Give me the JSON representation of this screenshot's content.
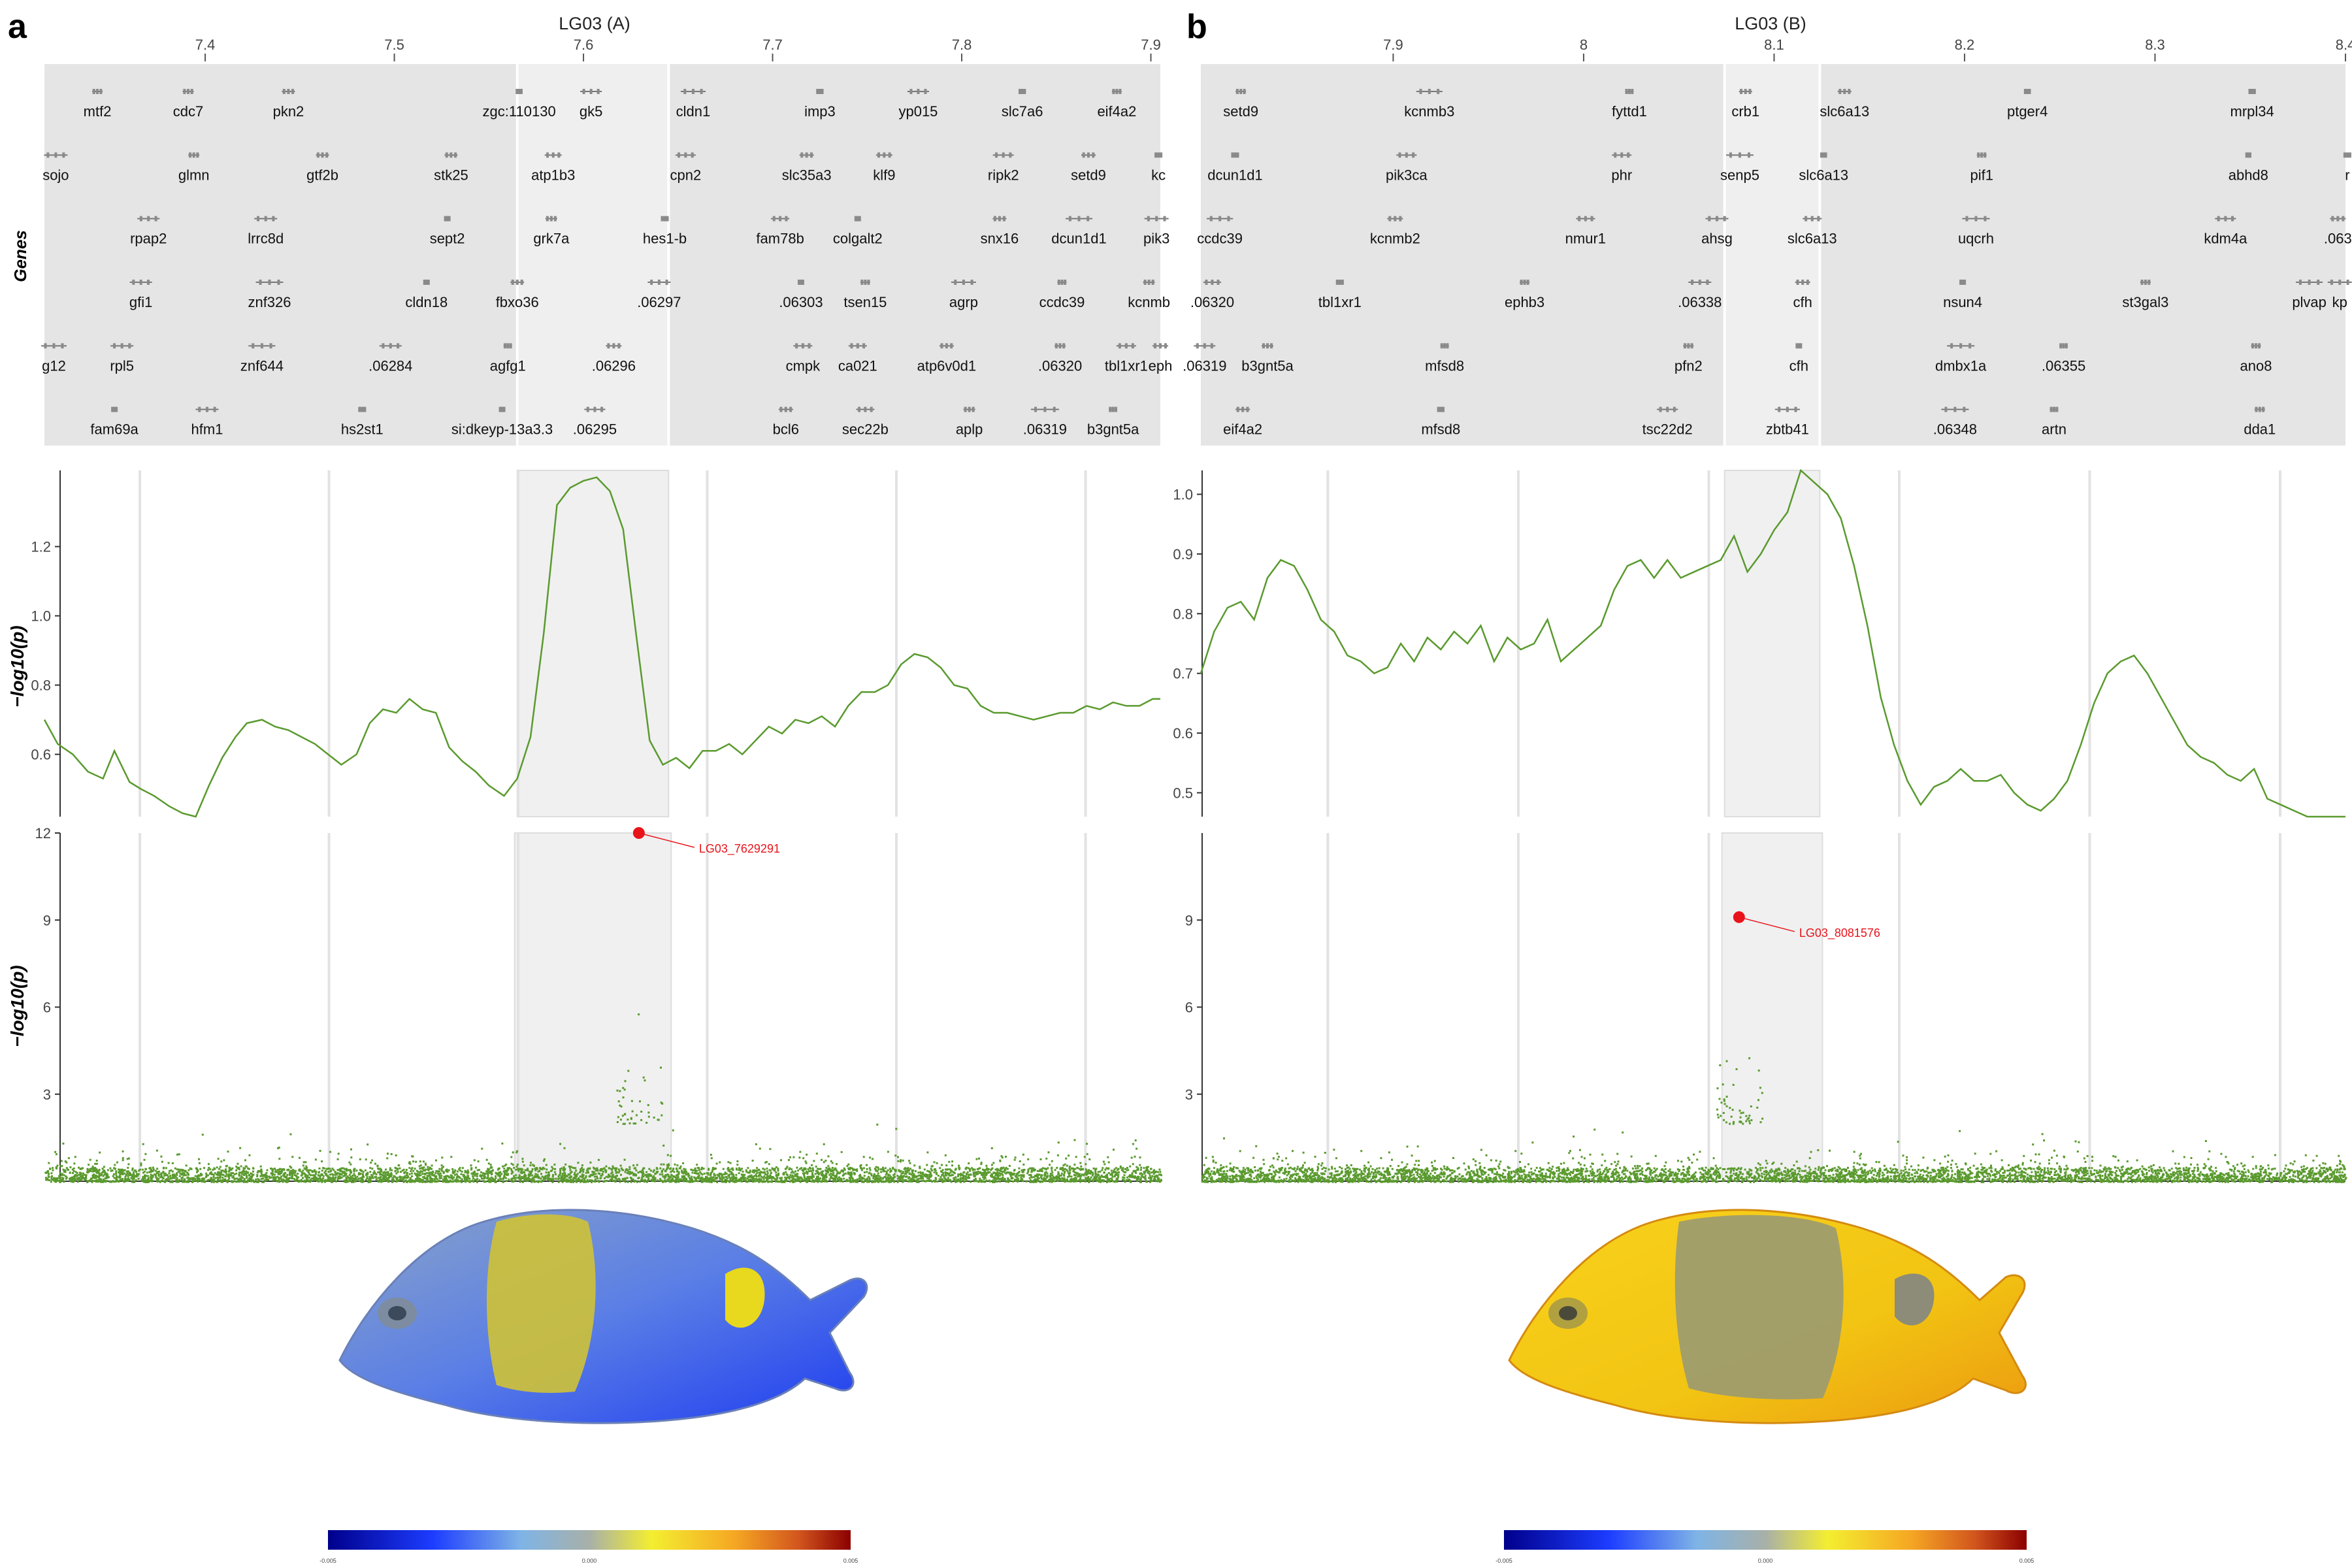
{
  "figure": {
    "panel_a_label": "a",
    "panel_b_label": "b"
  },
  "colors": {
    "track": "#5a9a2e",
    "highlight": "#e8141a",
    "gene_bg": "#e5e5e5",
    "region_bg": "#f0f0f0"
  },
  "chart_data": [
    {
      "panel": "a",
      "type": "scatter",
      "title": "LG03 (A)",
      "x_ticks": [
        "7.4",
        "7.5",
        "7.6",
        "7.7",
        "7.8",
        "7.9"
      ],
      "x_tick_values": [
        7.4,
        7.5,
        7.6,
        7.7,
        7.8,
        7.9
      ],
      "xlim": [
        7.315,
        7.905
      ],
      "highlight_region": [
        7.565,
        7.645
      ],
      "genes_track": {
        "ylabel": "Genes",
        "genes": [
          {
            "name": "mtf2",
            "x": 7.343,
            "row": 0
          },
          {
            "name": "cdc7",
            "x": 7.391,
            "row": 0
          },
          {
            "name": "pkn2",
            "x": 7.444,
            "row": 0
          },
          {
            "name": "zgc:110130",
            "x": 7.566,
            "row": 0
          },
          {
            "name": "gk5",
            "x": 7.604,
            "row": 0
          },
          {
            "name": "cldn1",
            "x": 7.658,
            "row": 0
          },
          {
            "name": "imp3",
            "x": 7.725,
            "row": 0
          },
          {
            "name": "yp015",
            "x": 7.777,
            "row": 0
          },
          {
            "name": "slc7a6",
            "x": 7.832,
            "row": 0
          },
          {
            "name": "eif4a2",
            "x": 7.882,
            "row": 0
          },
          {
            "name": "sojo",
            "x": 7.321,
            "row": 1
          },
          {
            "name": "glmn",
            "x": 7.394,
            "row": 1
          },
          {
            "name": "gtf2b",
            "x": 7.462,
            "row": 1
          },
          {
            "name": "stk25",
            "x": 7.53,
            "row": 1
          },
          {
            "name": "atp1b3",
            "x": 7.584,
            "row": 1
          },
          {
            "name": "cpn2",
            "x": 7.654,
            "row": 1
          },
          {
            "name": "slc35a3",
            "x": 7.718,
            "row": 1
          },
          {
            "name": "klf9",
            "x": 7.759,
            "row": 1
          },
          {
            "name": "ripk2",
            "x": 7.822,
            "row": 1
          },
          {
            "name": "setd9",
            "x": 7.867,
            "row": 1
          },
          {
            "name": "kc",
            "x": 7.904,
            "row": 1
          },
          {
            "name": "rpap2",
            "x": 7.37,
            "row": 2
          },
          {
            "name": "lrrc8d",
            "x": 7.432,
            "row": 2
          },
          {
            "name": "sept2",
            "x": 7.528,
            "row": 2
          },
          {
            "name": "grk7a",
            "x": 7.583,
            "row": 2
          },
          {
            "name": "hes1-b",
            "x": 7.643,
            "row": 2
          },
          {
            "name": "fam78b",
            "x": 7.704,
            "row": 2
          },
          {
            "name": "colgalt2",
            "x": 7.745,
            "row": 2
          },
          {
            "name": "snx16",
            "x": 7.82,
            "row": 2
          },
          {
            "name": "dcun1d1",
            "x": 7.862,
            "row": 2
          },
          {
            "name": "pik3",
            "x": 7.903,
            "row": 2
          },
          {
            "name": "gfi1",
            "x": 7.366,
            "row": 3
          },
          {
            "name": "znf326",
            "x": 7.434,
            "row": 3
          },
          {
            "name": "cldn18",
            "x": 7.517,
            "row": 3
          },
          {
            "name": "fbxo36",
            "x": 7.565,
            "row": 3
          },
          {
            "name": ".06297",
            "x": 7.64,
            "row": 3
          },
          {
            "name": ".06303",
            "x": 7.715,
            "row": 3
          },
          {
            "name": "tsen15",
            "x": 7.749,
            "row": 3
          },
          {
            "name": "agrp",
            "x": 7.801,
            "row": 3
          },
          {
            "name": "ccdc39",
            "x": 7.853,
            "row": 3
          },
          {
            "name": "kcnmb",
            "x": 7.899,
            "row": 3
          },
          {
            "name": "g12",
            "x": 7.32,
            "row": 4
          },
          {
            "name": "rpl5",
            "x": 7.356,
            "row": 4
          },
          {
            "name": "znf644",
            "x": 7.43,
            "row": 4
          },
          {
            "name": ".06284",
            "x": 7.498,
            "row": 4
          },
          {
            "name": "agfg1",
            "x": 7.56,
            "row": 4
          },
          {
            "name": ".06296",
            "x": 7.616,
            "row": 4
          },
          {
            "name": "cmpk",
            "x": 7.716,
            "row": 4
          },
          {
            "name": "ca021",
            "x": 7.745,
            "row": 4
          },
          {
            "name": "atp6v0d1",
            "x": 7.792,
            "row": 4
          },
          {
            "name": ".06320",
            "x": 7.852,
            "row": 4
          },
          {
            "name": "tbl1xr1",
            "x": 7.887,
            "row": 4
          },
          {
            "name": "eph",
            "x": 7.905,
            "row": 4
          },
          {
            "name": "fam69a",
            "x": 7.352,
            "row": 5
          },
          {
            "name": "hfm1",
            "x": 7.401,
            "row": 5
          },
          {
            "name": "hs2st1",
            "x": 7.483,
            "row": 5
          },
          {
            "name": "si:dkeyp-13a3.3",
            "x": 7.557,
            "row": 5
          },
          {
            "name": ".06295",
            "x": 7.606,
            "row": 5
          },
          {
            "name": "bcl6",
            "x": 7.707,
            "row": 5
          },
          {
            "name": "sec22b",
            "x": 7.749,
            "row": 5
          },
          {
            "name": "aplp",
            "x": 7.804,
            "row": 5
          },
          {
            "name": ".06319",
            "x": 7.844,
            "row": 5
          },
          {
            "name": "b3gnt5a",
            "x": 7.88,
            "row": 5
          }
        ]
      },
      "smoothed_track": {
        "type": "line",
        "ylabel": "−log10(p)",
        "ylim": [
          0.42,
          1.42
        ],
        "y_ticks": [
          "0.6",
          "0.8",
          "1.0",
          "1.2"
        ],
        "y_tick_values": [
          0.6,
          0.8,
          1.0,
          1.2
        ],
        "x": [
          7.315,
          7.322,
          7.33,
          7.338,
          7.346,
          7.352,
          7.36,
          7.366,
          7.373,
          7.381,
          7.388,
          7.395,
          7.402,
          7.409,
          7.416,
          7.422,
          7.43,
          7.437,
          7.444,
          7.451,
          7.458,
          7.465,
          7.472,
          7.48,
          7.487,
          7.494,
          7.501,
          7.508,
          7.515,
          7.522,
          7.529,
          7.536,
          7.543,
          7.55,
          7.558,
          7.565,
          7.572,
          7.579,
          7.586,
          7.593,
          7.6,
          7.607,
          7.614,
          7.621,
          7.628,
          7.635,
          7.642,
          7.649,
          7.656,
          7.663,
          7.67,
          7.677,
          7.684,
          7.691,
          7.698,
          7.705,
          7.712,
          7.719,
          7.726,
          7.733,
          7.74,
          7.747,
          7.754,
          7.761,
          7.768,
          7.775,
          7.782,
          7.789,
          7.796,
          7.803,
          7.81,
          7.817,
          7.824,
          7.831,
          7.838,
          7.845,
          7.852,
          7.859,
          7.866,
          7.873,
          7.88,
          7.887,
          7.894,
          7.901,
          7.905
        ],
        "y": [
          0.7,
          0.63,
          0.6,
          0.55,
          0.53,
          0.61,
          0.52,
          0.5,
          0.48,
          0.45,
          0.43,
          0.42,
          0.51,
          0.59,
          0.65,
          0.69,
          0.7,
          0.68,
          0.67,
          0.65,
          0.63,
          0.6,
          0.57,
          0.6,
          0.69,
          0.73,
          0.72,
          0.76,
          0.73,
          0.72,
          0.62,
          0.58,
          0.55,
          0.51,
          0.48,
          0.53,
          0.65,
          0.95,
          1.32,
          1.37,
          1.39,
          1.4,
          1.36,
          1.25,
          0.94,
          0.64,
          0.57,
          0.59,
          0.56,
          0.61,
          0.61,
          0.63,
          0.6,
          0.64,
          0.68,
          0.66,
          0.7,
          0.69,
          0.71,
          0.68,
          0.74,
          0.78,
          0.78,
          0.8,
          0.86,
          0.89,
          0.88,
          0.85,
          0.8,
          0.79,
          0.74,
          0.72,
          0.72,
          0.71,
          0.7,
          0.71,
          0.72,
          0.72,
          0.74,
          0.73,
          0.75,
          0.74,
          0.74,
          0.76,
          0.76
        ]
      },
      "snp_track": {
        "type": "scatter",
        "ylabel": "−log10(p)",
        "ylim": [
          0,
          12
        ],
        "y_ticks": [
          "3",
          "6",
          "9",
          "12"
        ],
        "y_tick_values": [
          3,
          6,
          9,
          12
        ],
        "lead_snp": {
          "label": "LG03_7629291",
          "x": 7.6293,
          "y": 12.0
        }
      },
      "colorbar": {
        "min_label": "-0.005",
        "mid_label": "0.000",
        "max_label": "0.005",
        "colors": [
          "#00008b",
          "#1c3cff",
          "#7fb4e6",
          "#a8b8ba",
          "#f0e830",
          "#f5a623",
          "#d2691e",
          "#8b0000"
        ]
      }
    },
    {
      "panel": "b",
      "type": "scatter",
      "title": "LG03 (B)",
      "x_ticks": [
        "7.9",
        "8",
        "8.1",
        "8.2",
        "8.3",
        "8.4"
      ],
      "x_tick_values": [
        7.9,
        8.0,
        8.1,
        8.2,
        8.3,
        8.4
      ],
      "xlim": [
        7.799,
        8.4
      ],
      "highlight_region": [
        8.074,
        8.124
      ],
      "genes_track": {
        "genes": [
          {
            "name": "setd9",
            "x": 7.82,
            "row": 0
          },
          {
            "name": "kcnmb3",
            "x": 7.919,
            "row": 0
          },
          {
            "name": "fyttd1",
            "x": 8.024,
            "row": 0
          },
          {
            "name": "crb1",
            "x": 8.085,
            "row": 0
          },
          {
            "name": "slc6a13",
            "x": 8.137,
            "row": 0
          },
          {
            "name": "ptger4",
            "x": 8.233,
            "row": 0
          },
          {
            "name": "mrpl34",
            "x": 8.351,
            "row": 0
          },
          {
            "name": "dcun1d1",
            "x": 7.817,
            "row": 1
          },
          {
            "name": "pik3ca",
            "x": 7.907,
            "row": 1
          },
          {
            "name": "phr",
            "x": 8.02,
            "row": 1
          },
          {
            "name": "senp5",
            "x": 8.082,
            "row": 1
          },
          {
            "name": "slc6a13",
            "x": 8.126,
            "row": 1
          },
          {
            "name": "pif1",
            "x": 8.209,
            "row": 1
          },
          {
            "name": "abhd8",
            "x": 8.349,
            "row": 1
          },
          {
            "name": "r",
            "x": 8.401,
            "row": 1
          },
          {
            "name": "ccdc39",
            "x": 7.809,
            "row": 2
          },
          {
            "name": "kcnmb2",
            "x": 7.901,
            "row": 2
          },
          {
            "name": "nmur1",
            "x": 8.001,
            "row": 2
          },
          {
            "name": "ahsg",
            "x": 8.07,
            "row": 2
          },
          {
            "name": "slc6a13",
            "x": 8.12,
            "row": 2
          },
          {
            "name": "uqcrh",
            "x": 8.206,
            "row": 2
          },
          {
            "name": "kdm4a",
            "x": 8.337,
            "row": 2
          },
          {
            "name": ".063",
            "x": 8.396,
            "row": 2
          },
          {
            "name": ".06320",
            "x": 7.805,
            "row": 3
          },
          {
            "name": "tbl1xr1",
            "x": 7.872,
            "row": 3
          },
          {
            "name": "ephb3",
            "x": 7.969,
            "row": 3
          },
          {
            "name": ".06338",
            "x": 8.061,
            "row": 3
          },
          {
            "name": "cfh",
            "x": 8.115,
            "row": 3
          },
          {
            "name": "nsun4",
            "x": 8.199,
            "row": 3
          },
          {
            "name": "st3gal3",
            "x": 8.295,
            "row": 3
          },
          {
            "name": "plvap",
            "x": 8.381,
            "row": 3
          },
          {
            "name": "kp",
            "x": 8.397,
            "row": 3
          },
          {
            "name": ".06319",
            "x": 7.801,
            "row": 4
          },
          {
            "name": "b3gnt5a",
            "x": 7.834,
            "row": 4
          },
          {
            "name": "mfsd8",
            "x": 7.927,
            "row": 4
          },
          {
            "name": "pfn2",
            "x": 8.055,
            "row": 4
          },
          {
            "name": "cfh",
            "x": 8.113,
            "row": 4
          },
          {
            "name": "dmbx1a",
            "x": 8.198,
            "row": 4
          },
          {
            "name": ".06355",
            "x": 8.252,
            "row": 4
          },
          {
            "name": "ano8",
            "x": 8.353,
            "row": 4
          },
          {
            "name": "eif4a2",
            "x": 7.821,
            "row": 5
          },
          {
            "name": "mfsd8",
            "x": 7.925,
            "row": 5
          },
          {
            "name": "tsc22d2",
            "x": 8.044,
            "row": 5
          },
          {
            "name": "zbtb41",
            "x": 8.107,
            "row": 5
          },
          {
            "name": ".06348",
            "x": 8.195,
            "row": 5
          },
          {
            "name": "artn",
            "x": 8.247,
            "row": 5
          },
          {
            "name": "dda1",
            "x": 8.355,
            "row": 5
          }
        ]
      },
      "smoothed_track": {
        "type": "line",
        "ylabel": "",
        "ylim": [
          0.46,
          1.04
        ],
        "y_ticks": [
          "0.5",
          "0.6",
          "0.7",
          "0.8",
          "0.9",
          "1.0"
        ],
        "y_tick_values": [
          0.5,
          0.6,
          0.7,
          0.8,
          0.9,
          1.0
        ],
        "x": [
          7.799,
          7.806,
          7.813,
          7.82,
          7.827,
          7.834,
          7.841,
          7.848,
          7.855,
          7.862,
          7.869,
          7.876,
          7.883,
          7.89,
          7.897,
          7.904,
          7.911,
          7.918,
          7.925,
          7.932,
          7.939,
          7.946,
          7.953,
          7.96,
          7.967,
          7.974,
          7.981,
          7.988,
          7.995,
          8.002,
          8.009,
          8.016,
          8.023,
          8.03,
          8.037,
          8.044,
          8.051,
          8.058,
          8.065,
          8.072,
          8.079,
          8.086,
          8.093,
          8.1,
          8.107,
          8.114,
          8.121,
          8.128,
          8.135,
          8.142,
          8.149,
          8.156,
          8.163,
          8.17,
          8.177,
          8.184,
          8.191,
          8.198,
          8.205,
          8.212,
          8.219,
          8.226,
          8.233,
          8.24,
          8.247,
          8.254,
          8.261,
          8.268,
          8.275,
          8.282,
          8.289,
          8.296,
          8.303,
          8.31,
          8.317,
          8.324,
          8.331,
          8.338,
          8.345,
          8.352,
          8.359,
          8.366,
          8.373,
          8.38,
          8.387,
          8.394,
          8.4
        ],
        "y": [
          0.7,
          0.77,
          0.81,
          0.82,
          0.79,
          0.86,
          0.89,
          0.88,
          0.84,
          0.79,
          0.77,
          0.73,
          0.72,
          0.7,
          0.71,
          0.75,
          0.72,
          0.76,
          0.74,
          0.77,
          0.75,
          0.78,
          0.72,
          0.76,
          0.74,
          0.75,
          0.79,
          0.72,
          0.74,
          0.76,
          0.78,
          0.84,
          0.88,
          0.89,
          0.86,
          0.89,
          0.86,
          0.87,
          0.88,
          0.89,
          0.93,
          0.87,
          0.9,
          0.94,
          0.97,
          1.04,
          1.02,
          1.0,
          0.96,
          0.88,
          0.78,
          0.66,
          0.58,
          0.52,
          0.48,
          0.51,
          0.52,
          0.54,
          0.52,
          0.52,
          0.53,
          0.5,
          0.48,
          0.47,
          0.49,
          0.52,
          0.58,
          0.65,
          0.7,
          0.72,
          0.73,
          0.7,
          0.66,
          0.62,
          0.58,
          0.56,
          0.55,
          0.53,
          0.52,
          0.54,
          0.49,
          0.48,
          0.47,
          0.46,
          0.46,
          0.46,
          0.46
        ]
      },
      "snp_track": {
        "type": "scatter",
        "ylim": [
          0,
          12
        ],
        "y_ticks": [
          "3",
          "6",
          "9"
        ],
        "y_tick_values": [
          3,
          6,
          9
        ],
        "lead_snp": {
          "label": "LG03_8081576",
          "x": 8.0816,
          "y": 9.1
        }
      },
      "colorbar": {
        "min_label": "-0.005",
        "mid_label": "0.000",
        "max_label": "0.005"
      }
    }
  ]
}
